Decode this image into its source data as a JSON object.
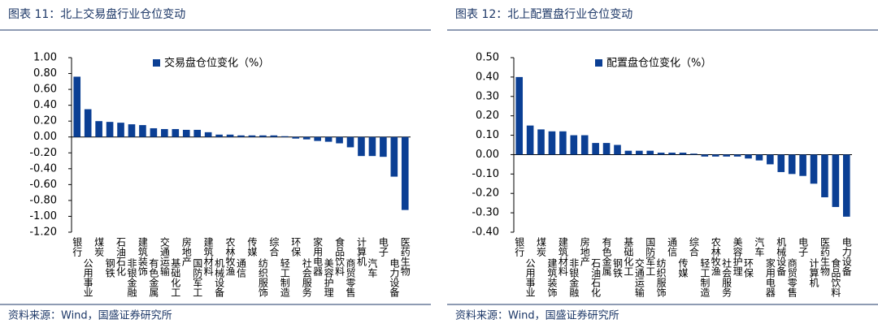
{
  "chart_data": [
    {
      "type": "bar",
      "title": "图表 11：北上交易盘行业仓位变动",
      "source": "资料来源：Wind，国盛证券研究所",
      "categories": [
        "银行",
        "公用事业",
        "煤炭",
        "钢铁",
        "石油石化",
        "非银金融",
        "建筑装饰",
        "有色金属",
        "交通运输",
        "基础化工",
        "房地产",
        "国防军工",
        "建筑材料",
        "机械设备",
        "农林牧渔",
        "通信",
        "传媒",
        "纺织服饰",
        "综合",
        "轻工制造",
        "环保",
        "社会服务",
        "家用电器",
        "美容护理",
        "食品饮料",
        "商贸零售",
        "计算机",
        "汽车",
        "电子",
        "电力设备",
        "医药生物"
      ],
      "series": [
        {
          "name": "交易盘仓位变化（%）",
          "color": "#0b3f94",
          "values": [
            0.76,
            0.35,
            0.2,
            0.19,
            0.18,
            0.16,
            0.15,
            0.11,
            0.1,
            0.1,
            0.09,
            0.09,
            0.06,
            0.03,
            0.03,
            0.02,
            0.02,
            0.02,
            0.02,
            0.01,
            -0.02,
            -0.03,
            -0.05,
            -0.06,
            -0.08,
            -0.13,
            -0.24,
            -0.24,
            -0.25,
            -0.5,
            -0.92
          ]
        }
      ],
      "ylim": [
        -1.2,
        1.0
      ],
      "yticks": [
        {
          "value": 1.0,
          "label": "1.00"
        },
        {
          "value": 0.8,
          "label": "0.80"
        },
        {
          "value": 0.6,
          "label": "0.60"
        },
        {
          "value": 0.4,
          "label": "0.40"
        },
        {
          "value": 0.2,
          "label": "0.20"
        },
        {
          "value": 0,
          "label": "0.00"
        },
        {
          "value": -0.2,
          "label": "-0.20"
        },
        {
          "value": -0.4,
          "label": "-0.40"
        },
        {
          "value": -0.6,
          "label": "-0.60"
        },
        {
          "value": -0.8,
          "label": "-0.80"
        },
        {
          "value": -1.0,
          "label": "-1.00"
        },
        {
          "value": -1.2,
          "label": "-1.20"
        }
      ],
      "grid": false,
      "legend": "top-left"
    },
    {
      "type": "bar",
      "title": "图表 12：北上配置盘行业仓位变动",
      "source": "资料来源：Wind，国盛证券研究所",
      "categories": [
        "银行",
        "公用事业",
        "煤炭",
        "建筑装饰",
        "建筑材料",
        "非银金融",
        "房地产",
        "石油石化",
        "有色金属",
        "钢铁",
        "基础化工",
        "交通运输",
        "国防军工",
        "纺织服饰",
        "通信",
        "传媒",
        "综合",
        "轻工制造",
        "农林牧渔",
        "社会服务",
        "美容护理",
        "环保",
        "汽车",
        "家用电器",
        "机械设备",
        "商贸零售",
        "电子",
        "计算机",
        "医药生物",
        "食品饮料",
        "电力设备"
      ],
      "series": [
        {
          "name": "配置盘仓位变化（%）",
          "color": "#0b3f94",
          "values": [
            0.4,
            0.15,
            0.13,
            0.12,
            0.12,
            0.1,
            0.1,
            0.06,
            0.06,
            0.05,
            0.02,
            0.02,
            0.02,
            0.01,
            0.01,
            0.01,
            0.005,
            -0.01,
            -0.01,
            -0.01,
            -0.01,
            -0.02,
            -0.03,
            -0.05,
            -0.09,
            -0.1,
            -0.11,
            -0.15,
            -0.22,
            -0.27,
            -0.32
          ]
        }
      ],
      "ylim": [
        -0.4,
        0.5
      ],
      "yticks": [
        {
          "value": 0.5,
          "label": "0.50"
        },
        {
          "value": 0.4,
          "label": "0.40"
        },
        {
          "value": 0.3,
          "label": "0.30"
        },
        {
          "value": 0.2,
          "label": "0.20"
        },
        {
          "value": 0.1,
          "label": "0.10"
        },
        {
          "value": 0,
          "label": "0.00"
        },
        {
          "value": -0.1,
          "label": "-0.10"
        },
        {
          "value": -0.2,
          "label": "-0.20"
        },
        {
          "value": -0.3,
          "label": "-0.30"
        },
        {
          "value": -0.4,
          "label": "-0.40"
        }
      ],
      "grid": false,
      "legend": "top-left"
    }
  ]
}
